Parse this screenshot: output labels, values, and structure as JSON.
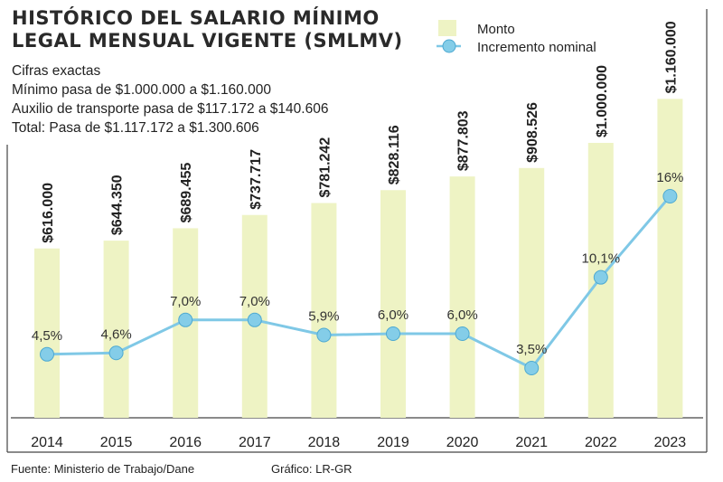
{
  "title_lines": [
    "HISTÓRICO DEL SALARIO MÍNIMO",
    "LEGAL MENSUAL VIGENTE (SMLMV)"
  ],
  "notes": [
    "Cifras exactas",
    "Mínimo pasa de $1.000.000 a $1.160.000",
    "Auxilio de transporte pasa de $117.172 a $140.606",
    "Total: Pasa de $1.117.172 a $1.300.606"
  ],
  "source": "Fuente: Ministerio de Trabajo/Dane",
  "credit": "Gráfico: LR-GR",
  "colors": {
    "bar": "#eef3c4",
    "line": "#7fc8e6",
    "marker": "#84cde8",
    "marker_stroke": "#4da9d1"
  },
  "chart_data": {
    "type": "bar",
    "categories": [
      "2014",
      "2015",
      "2016",
      "2017",
      "2018",
      "2019",
      "2020",
      "2021",
      "2022",
      "2023"
    ],
    "legend_position": "top-right",
    "series": [
      {
        "name": "Monto",
        "type": "bar",
        "values": [
          616000,
          644350,
          689455,
          737717,
          781242,
          828116,
          877803,
          908526,
          1000000,
          1160000
        ],
        "labels": [
          "$616.000",
          "$644.350",
          "$689.455",
          "$737.717",
          "$781.242",
          "$828.116",
          "$877.803",
          "$908.526",
          "$1.000.000",
          "$1.160.000"
        ]
      },
      {
        "name": "Incremento nominal",
        "type": "line",
        "values": [
          4.5,
          4.6,
          7.0,
          7.0,
          5.9,
          6.0,
          6.0,
          3.5,
          10.1,
          16.0
        ],
        "labels": [
          "4,5%",
          "4,6%",
          "7,0%",
          "7,0%",
          "5,9%",
          "6,0%",
          "6,0%",
          "3,5%",
          "10,1%",
          "16%"
        ]
      }
    ],
    "grid": false
  }
}
